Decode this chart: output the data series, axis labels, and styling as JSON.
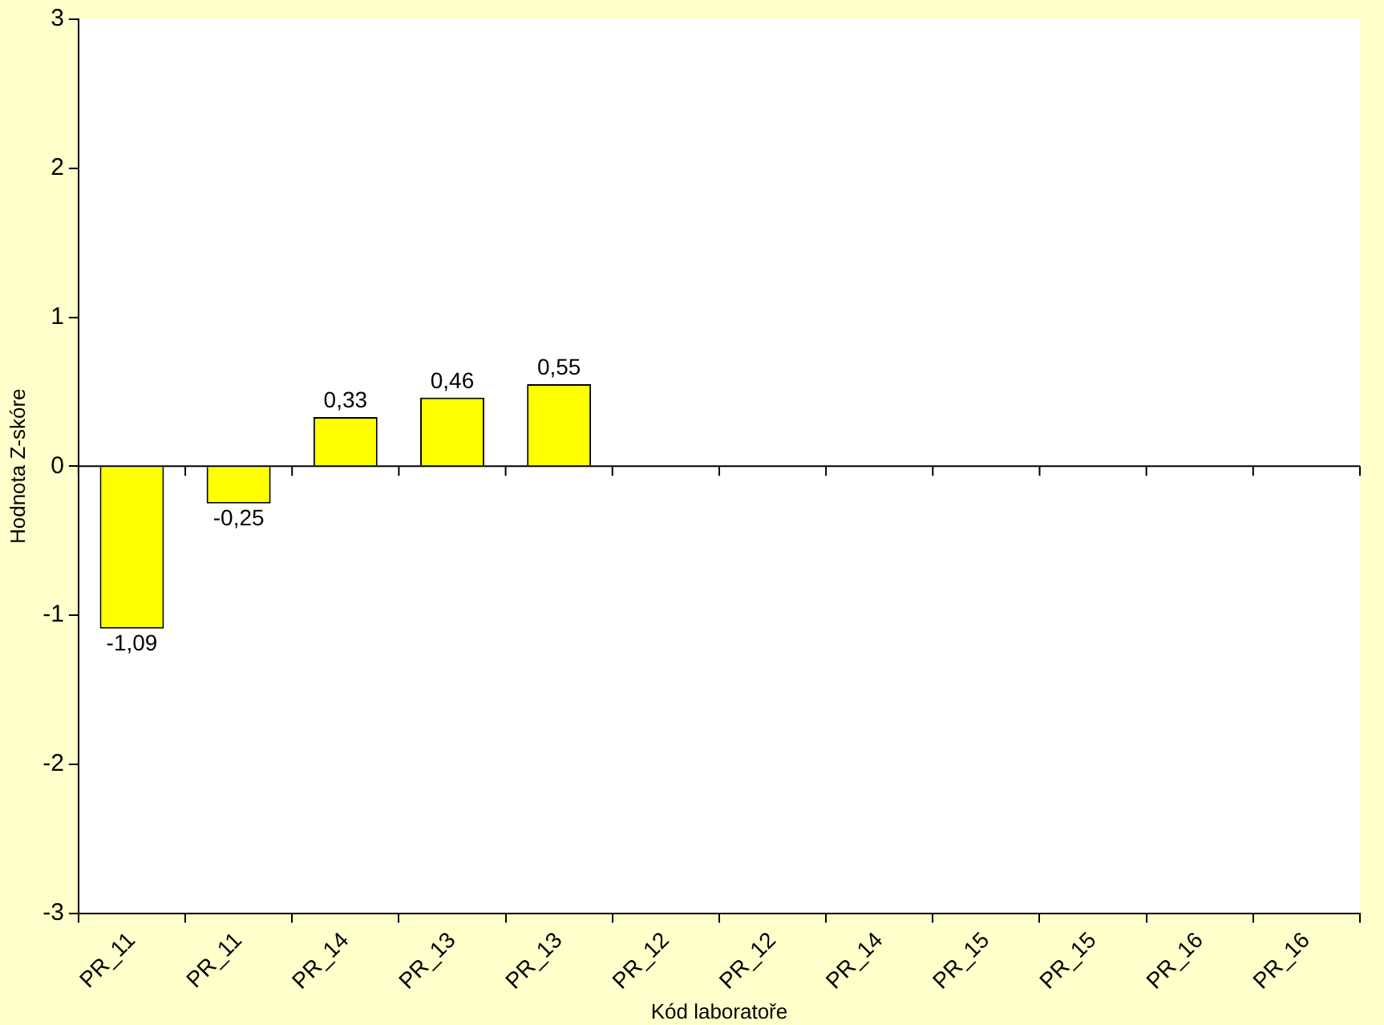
{
  "chart_data": {
    "type": "bar",
    "xlabel": "Kód laboratoře",
    "ylabel": "Hodnota Z-skóre",
    "categories": [
      "PR_11",
      "PR_11",
      "PR_14",
      "PR_13",
      "PR_13",
      "PR_12",
      "PR_12",
      "PR_14",
      "PR_15",
      "PR_15",
      "PR_16",
      "PR_16"
    ],
    "values": [
      -1.09,
      -0.25,
      0.33,
      0.46,
      0.55,
      null,
      null,
      null,
      null,
      null,
      null,
      null
    ],
    "value_labels": [
      "-1,09",
      "-0,25",
      "0,33",
      "0,46",
      "0,55",
      null,
      null,
      null,
      null,
      null,
      null,
      null
    ],
    "color": "#ffff00",
    "ylim": [
      -3,
      3
    ],
    "yticks": [
      -3,
      -2,
      -1,
      0,
      1,
      2,
      3
    ],
    "grid": false,
    "ref_lines": [
      {
        "axis": "y",
        "value": 0
      }
    ],
    "legend": false
  }
}
